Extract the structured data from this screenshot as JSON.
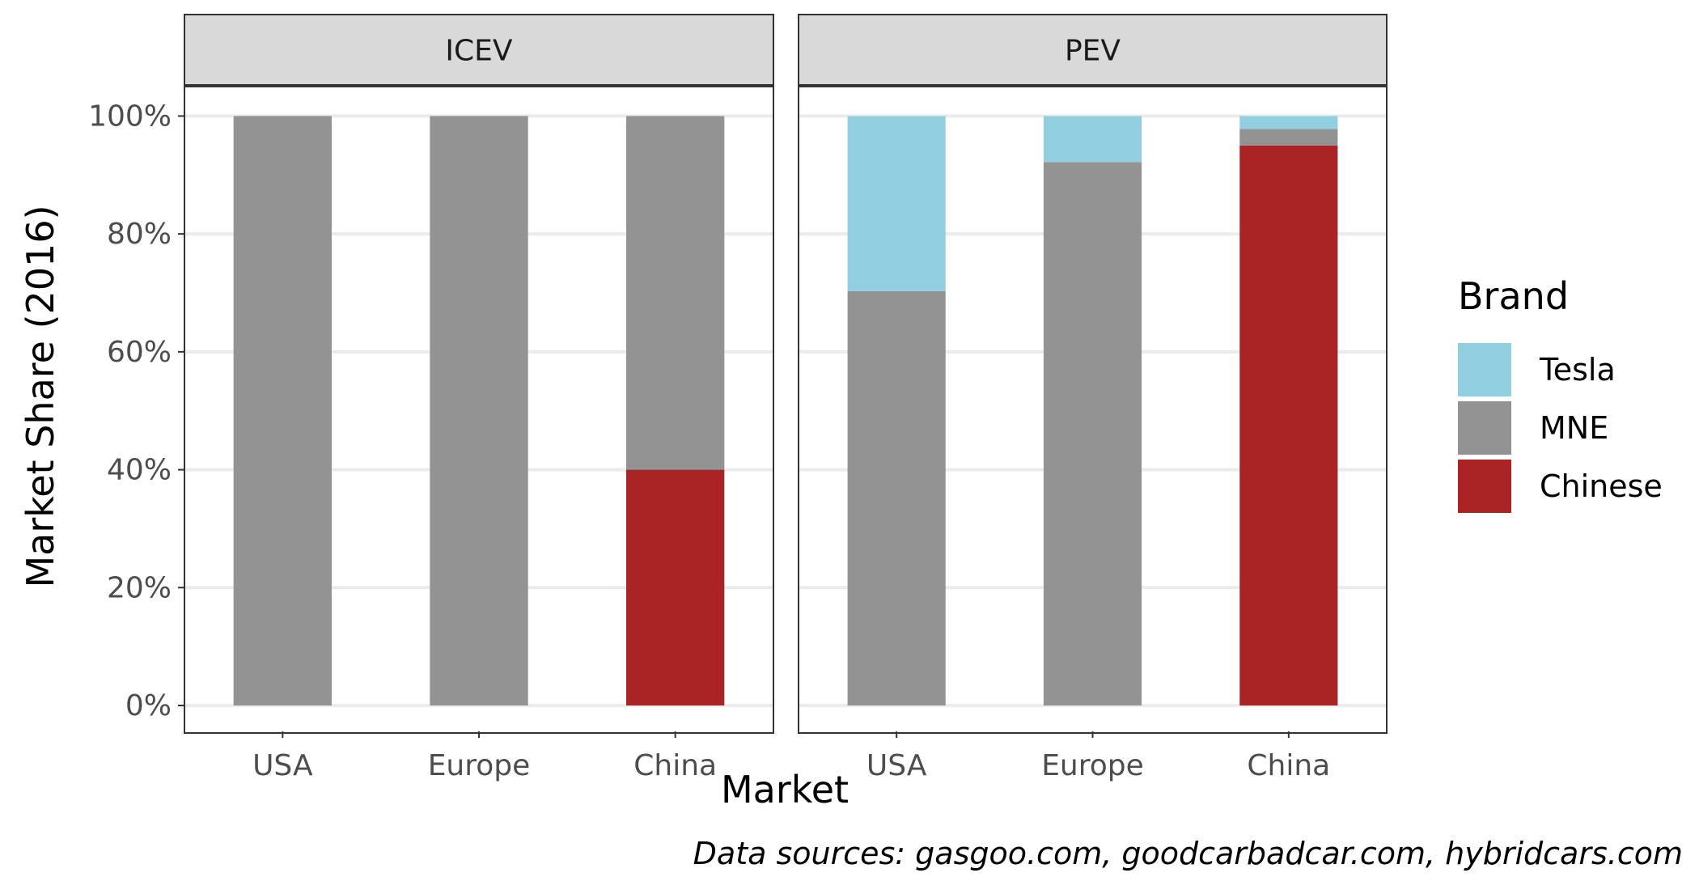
{
  "chart_data": {
    "type": "bar",
    "stacked": true,
    "facets": [
      {
        "label": "ICEV",
        "categories": [
          "USA",
          "Europe",
          "China"
        ],
        "series": [
          {
            "name": "Chinese",
            "values": [
              0,
              0,
              40
            ]
          },
          {
            "name": "MNE",
            "values": [
              100,
              100,
              60
            ]
          },
          {
            "name": "Tesla",
            "values": [
              0,
              0,
              0
            ]
          }
        ]
      },
      {
        "label": "PEV",
        "categories": [
          "USA",
          "Europe",
          "China"
        ],
        "series": [
          {
            "name": "Chinese",
            "values": [
              0,
              0,
              95
            ]
          },
          {
            "name": "MNE",
            "values": [
              70.3,
              92.2,
              2.8
            ]
          },
          {
            "name": "Tesla",
            "values": [
              29.7,
              7.8,
              2.2
            ]
          }
        ]
      }
    ],
    "xlabel": "Market",
    "ylabel": "Market Share (2016)",
    "ylim": [
      0,
      105
    ],
    "yticks": [
      0,
      20,
      40,
      60,
      80,
      100
    ],
    "ytick_labels": [
      "0%",
      "20%",
      "40%",
      "60%",
      "80%",
      "100%"
    ],
    "grid": true,
    "legend": {
      "title": "Brand",
      "position": "right",
      "entries": [
        "Tesla",
        "MNE",
        "Chinese"
      ]
    },
    "caption": "Data sources: gasgoo.com, goodcarbadcar.com, hybridcars.com",
    "colors": {
      "Tesla": "#92CDE0",
      "MNE": "#939393",
      "Chinese": "#AA2426"
    }
  }
}
